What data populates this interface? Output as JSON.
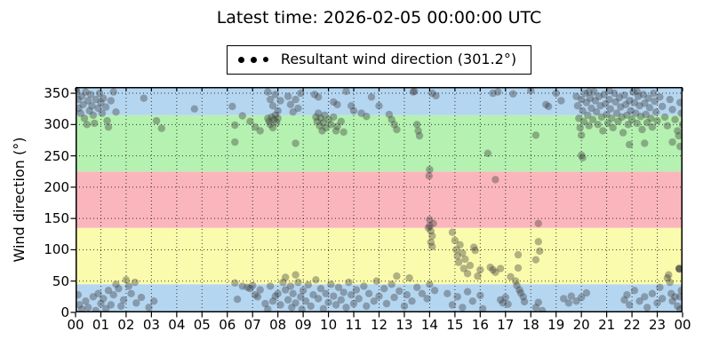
{
  "chart": {
    "title": "Latest time: 2026-02-05 00:00:00 UTC",
    "legend_label": "Resultant wind direction (301.2°)",
    "ylabel": "Wind direction (°)"
  },
  "chart_data": {
    "type": "scatter",
    "title": "Latest time: 2026-02-05 00:00:00 UTC",
    "xlabel": "",
    "ylabel": "Wind direction (°)",
    "legend": [
      "Resultant wind direction (301.2°)"
    ],
    "resultant_wind_direction_deg": 301.2,
    "xlim": [
      0,
      24
    ],
    "ylim": [
      0,
      360
    ],
    "grid": true,
    "legend_position": "top-center",
    "x_ticks": [
      "00",
      "01",
      "02",
      "03",
      "04",
      "05",
      "06",
      "07",
      "08",
      "09",
      "10",
      "11",
      "12",
      "13",
      "14",
      "15",
      "16",
      "17",
      "18",
      "19",
      "20",
      "21",
      "22",
      "23",
      "00"
    ],
    "y_ticks": [
      0,
      50,
      100,
      150,
      200,
      250,
      300,
      350
    ],
    "bands": [
      {
        "from": 0,
        "to": 45,
        "color": "#b5d6f0"
      },
      {
        "from": 45,
        "to": 135,
        "color": "#fbfbad"
      },
      {
        "from": 135,
        "to": 225,
        "color": "#fbb6bd"
      },
      {
        "from": 225,
        "to": 315,
        "color": "#b5f1b0"
      },
      {
        "from": 315,
        "to": 360,
        "color": "#b5d6f0"
      }
    ],
    "point_style": {
      "color": "#3a3a3a",
      "opacity": 0.38,
      "radius": 4.2
    },
    "points": [
      [
        0.02,
        355
      ],
      [
        0.05,
        352
      ],
      [
        0.1,
        340
      ],
      [
        0.12,
        326
      ],
      [
        0.2,
        318
      ],
      [
        0.25,
        345
      ],
      [
        0.3,
        332
      ],
      [
        0.35,
        310
      ],
      [
        0.4,
        352
      ],
      [
        0.45,
        300
      ],
      [
        0.5,
        338
      ],
      [
        0.55,
        322
      ],
      [
        0.6,
        348
      ],
      [
        0.65,
        330
      ],
      [
        0.7,
        315
      ],
      [
        0.75,
        302
      ],
      [
        0.8,
        340
      ],
      [
        0.9,
        326
      ],
      [
        0.95,
        350
      ],
      [
        1.0,
        335
      ],
      [
        1.05,
        318
      ],
      [
        1.1,
        342
      ],
      [
        1.2,
        328
      ],
      [
        1.25,
        306
      ],
      [
        1.3,
        296
      ],
      [
        1.4,
        338
      ],
      [
        1.5,
        352
      ],
      [
        1.6,
        320
      ],
      [
        0.1,
        28
      ],
      [
        0.15,
        12
      ],
      [
        0.25,
        5
      ],
      [
        0.4,
        18
      ],
      [
        0.5,
        8
      ],
      [
        0.7,
        25
      ],
      [
        0.8,
        3
      ],
      [
        0.9,
        30
      ],
      [
        1.0,
        14
      ],
      [
        1.1,
        22
      ],
      [
        1.2,
        6
      ],
      [
        1.3,
        35
      ],
      [
        1.4,
        12
      ],
      [
        1.5,
        28
      ],
      [
        1.6,
        45
      ],
      [
        1.7,
        38
      ],
      [
        1.8,
        10
      ],
      [
        1.9,
        20
      ],
      [
        2.0,
        52
      ],
      [
        2.1,
        42
      ],
      [
        2.2,
        30
      ],
      [
        2.35,
        48
      ],
      [
        2.4,
        15
      ],
      [
        2.6,
        24
      ],
      [
        2.9,
        8
      ],
      [
        3.1,
        18
      ],
      [
        2.7,
        342
      ],
      [
        3.2,
        306
      ],
      [
        3.4,
        294
      ],
      [
        4.7,
        325
      ],
      [
        6.2,
        329
      ],
      [
        6.3,
        299
      ],
      [
        6.3,
        272
      ],
      [
        6.6,
        314
      ],
      [
        6.9,
        305
      ],
      [
        7.1,
        296
      ],
      [
        7.3,
        290
      ],
      [
        7.6,
        352
      ],
      [
        7.7,
        340
      ],
      [
        7.8,
        330
      ],
      [
        7.9,
        348
      ],
      [
        8.0,
        322
      ],
      [
        8.1,
        338
      ],
      [
        7.6,
        310
      ],
      [
        7.65,
        305
      ],
      [
        7.7,
        300
      ],
      [
        7.75,
        312
      ],
      [
        7.8,
        295
      ],
      [
        7.85,
        308
      ],
      [
        7.9,
        315
      ],
      [
        7.95,
        303
      ],
      [
        8.0,
        310
      ],
      [
        8.4,
        345
      ],
      [
        8.5,
        332
      ],
      [
        8.6,
        320
      ],
      [
        8.7,
        340
      ],
      [
        8.8,
        326
      ],
      [
        8.9,
        350
      ],
      [
        9.45,
        348
      ],
      [
        9.6,
        344
      ],
      [
        9.5,
        312
      ],
      [
        9.55,
        305
      ],
      [
        9.6,
        318
      ],
      [
        9.65,
        298
      ],
      [
        9.7,
        310
      ],
      [
        9.75,
        290
      ],
      [
        9.8,
        303
      ],
      [
        9.85,
        315
      ],
      [
        9.9,
        295
      ],
      [
        10.0,
        308
      ],
      [
        10.1,
        300
      ],
      [
        10.2,
        312
      ],
      [
        10.3,
        290
      ],
      [
        10.35,
        297
      ],
      [
        10.5,
        305
      ],
      [
        10.6,
        288
      ],
      [
        10.2,
        336
      ],
      [
        10.35,
        332
      ],
      [
        10.7,
        353
      ],
      [
        10.9,
        330
      ],
      [
        11.0,
        322
      ],
      [
        11.3,
        318
      ],
      [
        11.5,
        313
      ],
      [
        11.7,
        344
      ],
      [
        12.0,
        330
      ],
      [
        12.4,
        316
      ],
      [
        12.5,
        308
      ],
      [
        12.6,
        300
      ],
      [
        12.7,
        292
      ],
      [
        13.35,
        352
      ],
      [
        13.4,
        353
      ],
      [
        13.5,
        300
      ],
      [
        13.55,
        290
      ],
      [
        13.6,
        282
      ],
      [
        14.1,
        350
      ],
      [
        14.25,
        346
      ],
      [
        8.7,
        270
      ],
      [
        13.98,
        218
      ],
      [
        14.0,
        228
      ],
      [
        14.0,
        148
      ],
      [
        14.0,
        138
      ],
      [
        14.05,
        130
      ],
      [
        14.1,
        122
      ],
      [
        14.05,
        112
      ],
      [
        14.1,
        105
      ],
      [
        14.15,
        142
      ],
      [
        13.95,
        135
      ],
      [
        14.9,
        128
      ],
      [
        15.0,
        115
      ],
      [
        15.05,
        100
      ],
      [
        15.1,
        90
      ],
      [
        15.15,
        80
      ],
      [
        15.2,
        108
      ],
      [
        15.3,
        95
      ],
      [
        15.35,
        70
      ],
      [
        15.4,
        85
      ],
      [
        15.5,
        62
      ],
      [
        15.6,
        75
      ],
      [
        15.75,
        104
      ],
      [
        15.8,
        99
      ],
      [
        15.9,
        58
      ],
      [
        16.0,
        68
      ],
      [
        16.6,
        212
      ],
      [
        16.3,
        254
      ],
      [
        16.4,
        72
      ],
      [
        16.5,
        68
      ],
      [
        16.6,
        64
      ],
      [
        16.8,
        70
      ],
      [
        17.2,
        57
      ],
      [
        17.4,
        50
      ],
      [
        17.5,
        92
      ],
      [
        17.5,
        71
      ],
      [
        17.45,
        43
      ],
      [
        17.55,
        36
      ],
      [
        17.6,
        31
      ],
      [
        17.7,
        25
      ],
      [
        16.8,
        20
      ],
      [
        16.9,
        15
      ],
      [
        17.0,
        24
      ],
      [
        17.1,
        13
      ],
      [
        17.75,
        17
      ],
      [
        18.2,
        84
      ],
      [
        18.3,
        142
      ],
      [
        18.3,
        113
      ],
      [
        18.35,
        98
      ],
      [
        18.2,
        8
      ],
      [
        18.3,
        16
      ],
      [
        18.45,
        3
      ],
      [
        16.5,
        350
      ],
      [
        16.7,
        352
      ],
      [
        17.3,
        349
      ],
      [
        18.0,
        354
      ],
      [
        18.2,
        283
      ],
      [
        18.6,
        332
      ],
      [
        18.7,
        329
      ],
      [
        19.0,
        350
      ],
      [
        19.2,
        338
      ],
      [
        20.0,
        283
      ],
      [
        20.0,
        251
      ],
      [
        20.05,
        247
      ],
      [
        14.7,
        30
      ],
      [
        14.9,
        12
      ],
      [
        15.1,
        25
      ],
      [
        15.3,
        8
      ],
      [
        15.5,
        33
      ],
      [
        15.7,
        18
      ],
      [
        16.0,
        27
      ],
      [
        16.1,
        6
      ],
      [
        19.3,
        22
      ],
      [
        19.5,
        15
      ],
      [
        19.6,
        26
      ],
      [
        19.8,
        18
      ],
      [
        20.0,
        24
      ],
      [
        20.2,
        31
      ],
      [
        21.7,
        20
      ],
      [
        21.8,
        28
      ],
      [
        21.9,
        12
      ],
      [
        22.1,
        35
      ],
      [
        22.3,
        18
      ],
      [
        22.5,
        25
      ],
      [
        22.6,
        8
      ],
      [
        22.8,
        30
      ],
      [
        23.0,
        15
      ],
      [
        23.1,
        40
      ],
      [
        23.2,
        22
      ],
      [
        23.4,
        55
      ],
      [
        23.45,
        60
      ],
      [
        23.5,
        48
      ],
      [
        23.55,
        30
      ],
      [
        23.6,
        18
      ],
      [
        23.7,
        25
      ],
      [
        23.8,
        10
      ],
      [
        23.9,
        25
      ],
      [
        23.95,
        35
      ],
      [
        23.9,
        5
      ],
      [
        23.86,
        70
      ],
      [
        23.87,
        70
      ],
      [
        23.88,
        69
      ],
      [
        19.8,
        345
      ],
      [
        19.85,
        330
      ],
      [
        19.9,
        310
      ],
      [
        19.95,
        295
      ],
      [
        20.0,
        340
      ],
      [
        20.05,
        322
      ],
      [
        20.1,
        305
      ],
      [
        20.15,
        350
      ],
      [
        20.2,
        335
      ],
      [
        20.25,
        315
      ],
      [
        20.3,
        298
      ],
      [
        20.35,
        342
      ],
      [
        20.4,
        326
      ],
      [
        20.45,
        308
      ],
      [
        20.5,
        352
      ],
      [
        20.55,
        338
      ],
      [
        20.6,
        320
      ],
      [
        20.65,
        300
      ],
      [
        20.7,
        345
      ],
      [
        20.75,
        330
      ],
      [
        20.8,
        312
      ],
      [
        20.85,
        290
      ],
      [
        20.9,
        348
      ],
      [
        20.95,
        333
      ],
      [
        21.0,
        316
      ],
      [
        21.05,
        302
      ],
      [
        21.1,
        340
      ],
      [
        21.15,
        325
      ],
      [
        21.2,
        310
      ],
      [
        21.25,
        295
      ],
      [
        21.3,
        350
      ],
      [
        21.35,
        336
      ],
      [
        21.4,
        318
      ],
      [
        21.45,
        305
      ],
      [
        21.5,
        343
      ],
      [
        21.55,
        328
      ],
      [
        21.6,
        312
      ],
      [
        21.65,
        287
      ],
      [
        21.7,
        347
      ],
      [
        21.75,
        332
      ],
      [
        21.8,
        315
      ],
      [
        21.85,
        300
      ],
      [
        21.9,
        338
      ],
      [
        21.95,
        322
      ],
      [
        22.0,
        308
      ],
      [
        22.05,
        352
      ],
      [
        22.1,
        335
      ],
      [
        22.15,
        318
      ],
      [
        22.2,
        302
      ],
      [
        22.25,
        345
      ],
      [
        22.3,
        330
      ],
      [
        22.35,
        313
      ],
      [
        22.4,
        292
      ],
      [
        22.45,
        348
      ],
      [
        22.5,
        334
      ],
      [
        22.55,
        316
      ],
      [
        22.6,
        303
      ],
      [
        22.65,
        342
      ],
      [
        22.7,
        327
      ],
      [
        22.75,
        310
      ],
      [
        22.8,
        296
      ],
      [
        22.85,
        350
      ],
      [
        22.9,
        337
      ],
      [
        22.95,
        320
      ],
      [
        23.0,
        306
      ],
      [
        23.1,
        344
      ],
      [
        23.2,
        329
      ],
      [
        23.3,
        312
      ],
      [
        23.4,
        298
      ],
      [
        23.5,
        340
      ],
      [
        23.6,
        324
      ],
      [
        23.7,
        308
      ],
      [
        23.8,
        290
      ],
      [
        23.9,
        335
      ],
      [
        23.95,
        318
      ],
      [
        24.0,
        300
      ],
      [
        23.85,
        282
      ],
      [
        23.6,
        272
      ],
      [
        23.9,
        265
      ],
      [
        22.5,
        270
      ],
      [
        21.9,
        268
      ],
      [
        20.3,
        352
      ],
      [
        21.1,
        354
      ],
      [
        22.2,
        353
      ],
      [
        6.3,
        47
      ],
      [
        6.4,
        21
      ],
      [
        6.6,
        42
      ],
      [
        6.8,
        40
      ],
      [
        6.9,
        38
      ],
      [
        7.0,
        43
      ],
      [
        7.1,
        28
      ],
      [
        7.2,
        25
      ],
      [
        7.3,
        36
      ],
      [
        7.5,
        14
      ],
      [
        7.7,
        42
      ],
      [
        7.9,
        26
      ],
      [
        8.1,
        12
      ],
      [
        8.3,
        36
      ],
      [
        7.6,
        5
      ],
      [
        7.8,
        18
      ],
      [
        8.0,
        30
      ],
      [
        8.2,
        48
      ],
      [
        8.4,
        20
      ],
      [
        8.5,
        42
      ],
      [
        8.55,
        8
      ],
      [
        8.6,
        30
      ],
      [
        8.7,
        15
      ],
      [
        8.8,
        48
      ],
      [
        8.9,
        25
      ],
      [
        8.95,
        5
      ],
      [
        9.0,
        35
      ],
      [
        9.1,
        18
      ],
      [
        9.2,
        44
      ],
      [
        9.3,
        10
      ],
      [
        9.4,
        28
      ],
      [
        9.5,
        52
      ],
      [
        9.6,
        22
      ],
      [
        9.7,
        38
      ],
      [
        9.8,
        6
      ],
      [
        9.9,
        30
      ],
      [
        10.0,
        16
      ],
      [
        10.1,
        45
      ],
      [
        10.2,
        26
      ],
      [
        10.3,
        12
      ],
      [
        10.4,
        40
      ],
      [
        10.5,
        20
      ],
      [
        10.6,
        32
      ],
      [
        10.7,
        8
      ],
      [
        10.8,
        48
      ],
      [
        10.9,
        28
      ],
      [
        11.0,
        14
      ],
      [
        11.1,
        36
      ],
      [
        11.2,
        22
      ],
      [
        11.4,
        42
      ],
      [
        11.5,
        10
      ],
      [
        11.6,
        30
      ],
      [
        11.8,
        18
      ],
      [
        11.9,
        50
      ],
      [
        12.0,
        26
      ],
      [
        12.2,
        38
      ],
      [
        12.3,
        14
      ],
      [
        12.5,
        45
      ],
      [
        12.6,
        24
      ],
      [
        12.8,
        34
      ],
      [
        13.0,
        10
      ],
      [
        13.1,
        28
      ],
      [
        13.3,
        18
      ],
      [
        13.5,
        40
      ],
      [
        13.7,
        30
      ],
      [
        13.9,
        22
      ],
      [
        14.0,
        45
      ],
      [
        14.2,
        35
      ],
      [
        8.3,
        56
      ],
      [
        8.7,
        60
      ],
      [
        12.7,
        58
      ],
      [
        13.2,
        55
      ]
    ]
  }
}
